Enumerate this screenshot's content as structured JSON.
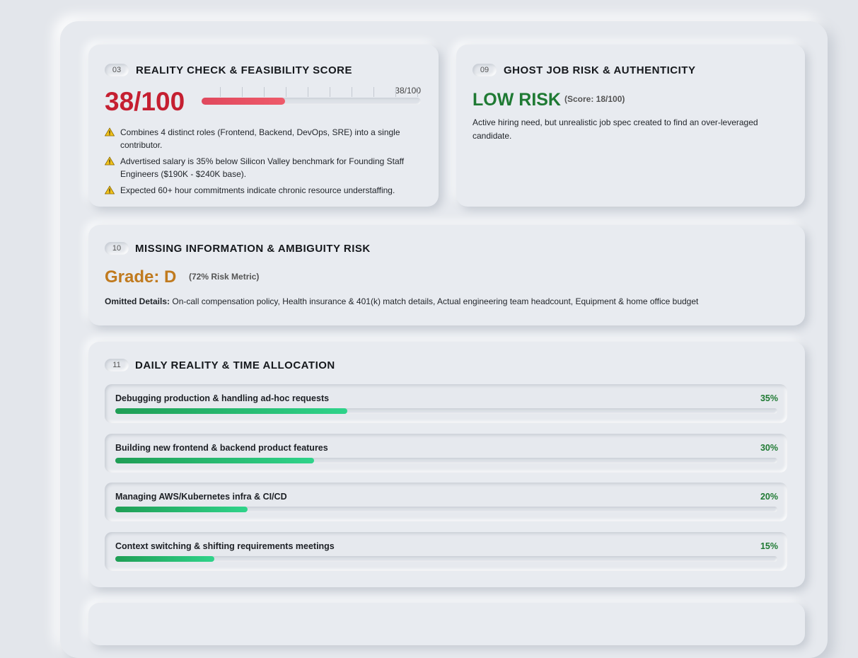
{
  "feasibility": {
    "number": "03",
    "title": "REALITY CHECK & FEASIBILITY SCORE",
    "score_label": "38/100",
    "score": 38,
    "score_max": 100,
    "warnings": [
      "Combines 4 distinct roles (Frontend, Backend, DevOps, SRE) into a single contributor.",
      "Advertised salary is 35% below Silicon Valley benchmark for Founding Staff Engineers ($190K - $240K base).",
      "Expected 60+ hour commitments indicate chronic resource understaffing."
    ]
  },
  "ghost_job": {
    "number": "09",
    "title": "GHOST JOB RISK & AUTHENTICITY",
    "risk": "LOW RISK",
    "score_note": "(Score: 18/100)",
    "description": "Active hiring need, but unrealistic job spec created to find an over-leveraged candidate."
  },
  "missing_info": {
    "number": "10",
    "title": "MISSING INFORMATION & AMBIGUITY RISK",
    "grade": "Grade: D",
    "metric": "(72% Risk Metric)",
    "omitted_label": "Omitted Details:",
    "omitted_text": "On-call compensation policy, Health insurance & 401(k) match details, Actual engineering team headcount, Equipment & home office budget"
  },
  "time_allocation": {
    "number": "11",
    "title": "DAILY REALITY & TIME ALLOCATION",
    "items": [
      {
        "label": "Debugging production & handling ad-hoc requests",
        "value": 35,
        "value_label": "35%"
      },
      {
        "label": "Building new frontend & backend product features",
        "value": 30,
        "value_label": "30%"
      },
      {
        "label": "Managing AWS/Kubernetes infra & CI/CD",
        "value": 20,
        "value_label": "20%"
      },
      {
        "label": "Context switching & shifting requirements meetings",
        "value": 15,
        "value_label": "15%"
      }
    ]
  }
}
